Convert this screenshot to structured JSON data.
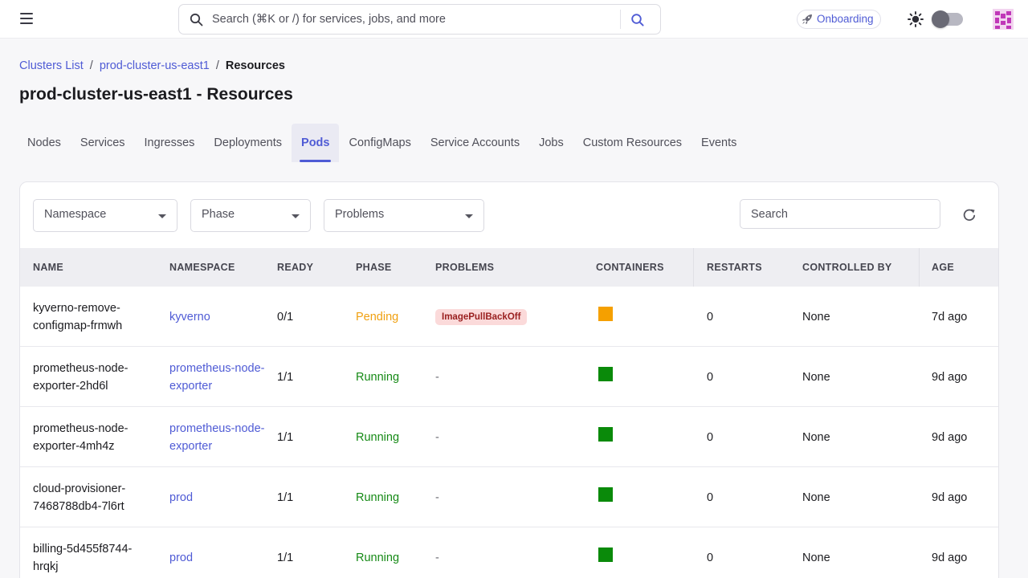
{
  "header": {
    "search_placeholder": "Search (⌘K or /) for services, jobs, and more",
    "onboarding_label": "Onboarding"
  },
  "breadcrumb": {
    "items": [
      "Clusters List",
      "prod-cluster-us-east1"
    ],
    "current": "Resources",
    "separator": "/"
  },
  "page": {
    "title": "prod-cluster-us-east1 - Resources"
  },
  "tabs": [
    "Nodes",
    "Services",
    "Ingresses",
    "Deployments",
    "Pods",
    "ConfigMaps",
    "Service Accounts",
    "Jobs",
    "Custom Resources",
    "Events"
  ],
  "active_tab": "Pods",
  "filters": {
    "namespace_label": "Namespace",
    "phase_label": "Phase",
    "problems_label": "Problems",
    "search_placeholder": "Search"
  },
  "table": {
    "columns": [
      "NAME",
      "NAMESPACE",
      "READY",
      "PHASE",
      "PROBLEMS",
      "CONTAINERS",
      "RESTARTS",
      "CONTROLLED BY",
      "AGE"
    ],
    "rows": [
      {
        "name": "kyverno-remove-configmap-frmwh",
        "namespace": "kyverno",
        "ready": "0/1",
        "phase": "Pending",
        "problems": "ImagePullBackOff",
        "container_color": "#f5a000",
        "restarts": "0",
        "controlled_by": "None",
        "age": "7d ago"
      },
      {
        "name": "prometheus-node-exporter-2hd6l",
        "namespace": "prometheus-node-exporter",
        "ready": "1/1",
        "phase": "Running",
        "problems": "-",
        "container_color": "#0a8a0a",
        "restarts": "0",
        "controlled_by": "None",
        "age": "9d ago"
      },
      {
        "name": "prometheus-node-exporter-4mh4z",
        "namespace": "prometheus-node-exporter",
        "ready": "1/1",
        "phase": "Running",
        "problems": "-",
        "container_color": "#0a8a0a",
        "restarts": "0",
        "controlled_by": "None",
        "age": "9d ago"
      },
      {
        "name": "cloud-provisioner-7468788db4-7l6rt",
        "namespace": "prod",
        "ready": "1/1",
        "phase": "Running",
        "problems": "-",
        "container_color": "#0a8a0a",
        "restarts": "0",
        "controlled_by": "None",
        "age": "9d ago"
      },
      {
        "name": "billing-5d455f8744-hrqkj",
        "namespace": "prod",
        "ready": "1/1",
        "phase": "Running",
        "problems": "-",
        "container_color": "#0a8a0a",
        "restarts": "0",
        "controlled_by": "None",
        "age": "9d ago"
      }
    ]
  },
  "colors": {
    "accent": "#4f5bd5",
    "pending": "#f0a010",
    "running": "#168a16",
    "problem_badge_bg": "#fbdada"
  },
  "icons": {
    "menu": "hamburger-menu-icon",
    "search": "search-icon",
    "onboarding": "rocket-icon",
    "theme": "sun-icon",
    "refresh": "refresh-icon",
    "avatar": "avatar-icon"
  }
}
